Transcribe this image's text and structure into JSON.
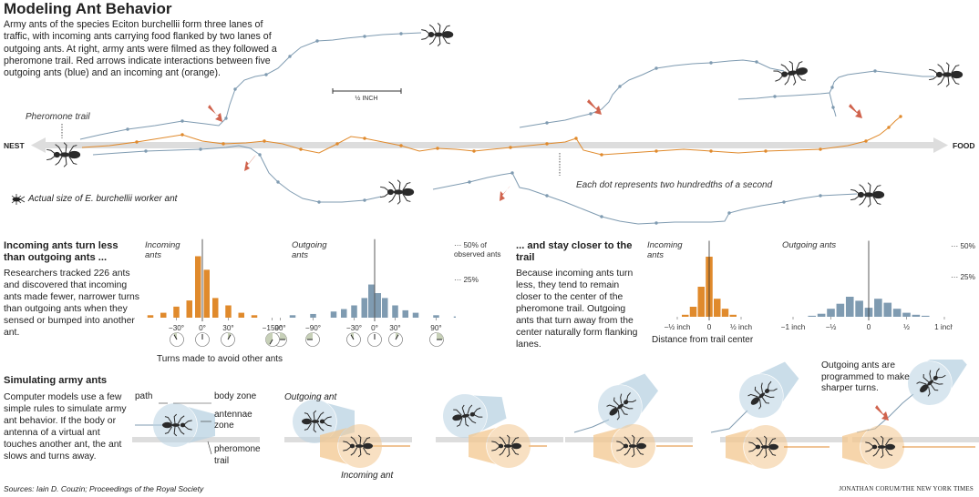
{
  "title": "Modeling Ant Behavior",
  "intro": "Army ants of the species Eciton burchellii form three lanes of traffic, with incoming ants carrying food flanked by two lanes of outgoing ants. At right, army ants were filmed as they followed a pheromone trail. Red arrows indicate interactions between five outgoing ants (blue) and an incoming ant (orange).",
  "map": {
    "scale_label": "½ INCH",
    "pheromone_label": "Pheromone trail",
    "nest_label": "NEST",
    "food_label": "FOOD",
    "dot_note": "Each dot represents two hundredths of a second",
    "actual_size_label": "Actual size of E. burchellii worker ant"
  },
  "section_turns": {
    "heading": "Incoming ants turn less than outgoing ants ...",
    "body": "Researchers tracked 226 ants and discovered that incoming ants made fewer, narrower turns than outgoing ants when they sensed or bumped into another ant.",
    "incoming_label": "Incoming ants",
    "outgoing_label": "Outgoing ants",
    "caption": "Turns made to avoid other ants",
    "ref_50": "50% of observed ants",
    "ref_25": "25%"
  },
  "section_closer": {
    "heading": "... and stay closer to the trail",
    "body": "Because incoming ants turn less, they tend to remain closer to the center of the pheromone trail. Outgoing ants that turn away from the center naturally form flanking lanes.",
    "incoming_label": "Incoming ants",
    "outgoing_label": "Outgoing ants",
    "caption": "Distance from trail center",
    "ref_50": "50%",
    "ref_25": "25%"
  },
  "section_sim": {
    "heading": "Simulating army ants",
    "body": "Computer models use a few simple rules to simulate army ant behavior. If the body or antenna of a virtual ant touches another ant, the ant slows and turns away.",
    "labels": {
      "path": "path",
      "body_zone": "body zone",
      "antennae_zone": "antennae zone",
      "pheromone_trail": "pheromone trail"
    },
    "outgoing_label": "Outgoing ant",
    "incoming_label": "Incoming ant",
    "sharper_note": "Outgoing ants are programmed to make sharper turns."
  },
  "footer": {
    "sources": "Sources: Iain D. Couzin; Proceedings of the Royal Society",
    "credit": "JONATHAN CORUM/THE NEW YORK TIMES"
  },
  "colors": {
    "incoming": "#e08a2c",
    "outgoing": "#7f9bb1",
    "arrow": "#d0634d",
    "trail": "#dddddd"
  },
  "chart_data": [
    {
      "type": "bar",
      "title": "Incoming ants",
      "xlabel": "Turns made to avoid other ants",
      "x_ticks": [
        "−90°",
        "−30°",
        "0°",
        "30°",
        "90°"
      ],
      "bin_centers_deg": [
        -60,
        -45,
        -30,
        -15,
        -5,
        5,
        15,
        30,
        45,
        60
      ],
      "values": [
        2,
        4,
        9,
        14,
        50,
        39,
        16,
        10,
        4,
        2
      ],
      "ylim": [
        0,
        55
      ],
      "reference_lines": [
        25,
        50
      ],
      "series_color": "#e08a2c"
    },
    {
      "type": "bar",
      "title": "Outgoing ants",
      "xlabel": "Turns made to avoid other ants",
      "x_ticks": [
        "−150°",
        "−90°",
        "−30°",
        "0°",
        "30°",
        "90°",
        "150°"
      ],
      "bin_centers_deg": [
        -120,
        -90,
        -60,
        -45,
        -30,
        -15,
        -5,
        5,
        15,
        30,
        45,
        60,
        90,
        120
      ],
      "values": [
        2,
        3,
        5,
        7,
        10,
        16,
        27,
        20,
        16,
        10,
        6,
        4,
        2,
        1
      ],
      "ylim": [
        0,
        55
      ],
      "reference_lines": [
        25,
        50
      ],
      "series_color": "#7f9bb1"
    },
    {
      "type": "bar",
      "title": "Incoming ants",
      "xlabel": "Distance from trail center",
      "x_ticks": [
        "−½ inch",
        "0",
        "½ inch"
      ],
      "bin_centers_inch": [
        -0.375,
        -0.25,
        -0.125,
        0,
        0.125,
        0.25,
        0.375
      ],
      "values": [
        2,
        10,
        30,
        60,
        18,
        8,
        2
      ],
      "ylim": [
        0,
        65
      ],
      "reference_lines": [
        25,
        50
      ],
      "series_color": "#e08a2c"
    },
    {
      "type": "bar",
      "title": "Outgoing ants",
      "xlabel": "Distance from trail center",
      "x_ticks": [
        "−1 inch",
        "−½",
        "0",
        "½",
        "1 inch"
      ],
      "bin_centers_inch": [
        -0.75,
        -0.625,
        -0.5,
        -0.375,
        -0.25,
        -0.125,
        0,
        0.125,
        0.25,
        0.375,
        0.5,
        0.625,
        0.75
      ],
      "values": [
        1,
        3,
        8,
        13,
        20,
        16,
        9,
        18,
        14,
        8,
        4,
        2,
        1
      ],
      "ylim": [
        0,
        65
      ],
      "reference_lines": [
        25,
        50
      ],
      "series_color": "#7f9bb1"
    }
  ]
}
